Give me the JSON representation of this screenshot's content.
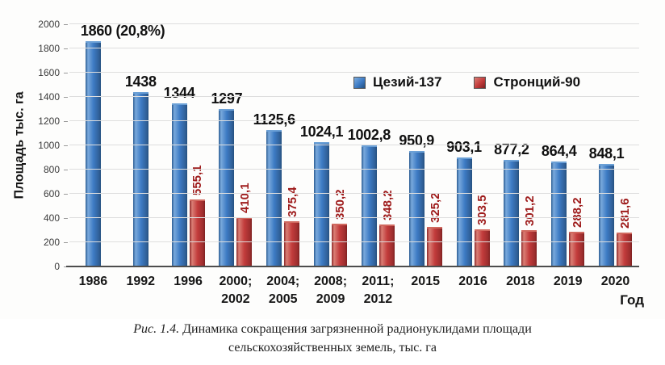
{
  "caption": {
    "prefix": "Рис. 1.4.",
    "text": "Динамика сокращения загрязненной радионуклидами площади сельскохозяйственных земель, тыс. га"
  },
  "chart_data": {
    "type": "bar",
    "title": "",
    "xlabel": "Год",
    "ylabel": "Площадь тыс. га",
    "ylim": [
      0,
      2000
    ],
    "ytick_step": 200,
    "grid": true,
    "legend_position": "top-center",
    "categories": [
      "1986",
      "1992",
      "1996",
      "2000;\n2002",
      "2004;\n2005",
      "2008;\n2009",
      "2011;\n2012",
      "2015",
      "2016",
      "2018",
      "2019",
      "2020"
    ],
    "series": [
      {
        "name": "Цезий-137",
        "color": "#3d7bc4",
        "values": [
          1860,
          1438,
          1344,
          1297,
          1125.6,
          1024.1,
          1002.8,
          950.9,
          903.1,
          877.2,
          864.4,
          848.1
        ],
        "labels": [
          "1860 (20,8%)",
          "1438",
          "1344",
          "1297",
          "1125,6",
          "1024,1",
          "1002,8",
          "950,9",
          "903,1",
          "877,2",
          "864,4",
          "848,1"
        ]
      },
      {
        "name": "Стронций-90",
        "color": "#c23b3b",
        "label_color": "#9e1b1b",
        "values": [
          null,
          null,
          555.1,
          410.1,
          375.4,
          350.2,
          348.2,
          325.2,
          303.5,
          301.2,
          288.2,
          281.6
        ],
        "labels": [
          null,
          null,
          "555,1",
          "410,1",
          "375,4",
          "350,2",
          "348,2",
          "325,2",
          "303,5",
          "301,2",
          "288,2",
          "281,6"
        ]
      }
    ]
  }
}
